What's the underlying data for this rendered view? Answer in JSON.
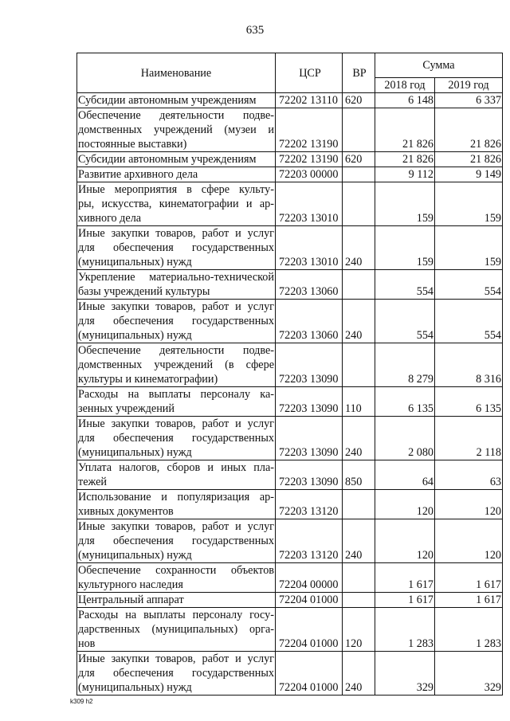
{
  "page_number": "635",
  "footer_code": "k309 h2",
  "header": {
    "name": "Наименование",
    "csr": "ЦСР",
    "vr": "ВР",
    "sum": "Сумма",
    "y2018": "2018 год",
    "y2019": "2019 год"
  },
  "rows": [
    {
      "name": [
        "Субсидии автономным учреждениям"
      ],
      "csr": "72202 13110",
      "vr": "620",
      "y2018": "6 148",
      "y2019": "6 337"
    },
    {
      "name": [
        "Обеспечение деятельности подве-",
        "домственных учреждений (музеи и",
        "постоянные выставки)"
      ],
      "csr": "72202 13190",
      "vr": "",
      "y2018": "21 826",
      "y2019": "21 826"
    },
    {
      "name": [
        "Субсидии автономным учреждениям"
      ],
      "csr": "72202 13190",
      "vr": "620",
      "y2018": "21 826",
      "y2019": "21 826"
    },
    {
      "name": [
        "Развитие архивного дела"
      ],
      "csr": "72203 00000",
      "vr": "",
      "y2018": "9 112",
      "y2019": "9 149"
    },
    {
      "name": [
        "Иные мероприятия в сфере культу-",
        "ры, искусства, кинематографии и ар-",
        "хивного дела"
      ],
      "csr": "72203 13010",
      "vr": "",
      "y2018": "159",
      "y2019": "159"
    },
    {
      "name": [
        "Иные закупки товаров, работ и услуг",
        "для обеспечения государственных",
        "(муниципальных) нужд"
      ],
      "csr": "72203 13010",
      "vr": "240",
      "y2018": "159",
      "y2019": "159"
    },
    {
      "name": [
        "Укрепление материально-технической",
        "базы учреждений культуры"
      ],
      "csr": "72203 13060",
      "vr": "",
      "y2018": "554",
      "y2019": "554"
    },
    {
      "name": [
        "Иные закупки товаров, работ и услуг",
        "для обеспечения государственных",
        "(муниципальных) нужд"
      ],
      "csr": "72203 13060",
      "vr": "240",
      "y2018": "554",
      "y2019": "554"
    },
    {
      "name": [
        "Обеспечение деятельности подве-",
        "домственных учреждений (в сфере",
        "культуры и кинематографии)"
      ],
      "csr": "72203 13090",
      "vr": "",
      "y2018": "8 279",
      "y2019": "8 316"
    },
    {
      "name": [
        "Расходы на выплаты персоналу ка-",
        "зенных учреждений"
      ],
      "csr": "72203 13090",
      "vr": "110",
      "y2018": "6 135",
      "y2019": "6 135"
    },
    {
      "name": [
        "Иные закупки товаров, работ и услуг",
        "для обеспечения государственных",
        "(муниципальных) нужд"
      ],
      "csr": "72203 13090",
      "vr": "240",
      "y2018": "2 080",
      "y2019": "2 118"
    },
    {
      "name": [
        "Уплата налогов, сборов и иных пла-",
        "тежей"
      ],
      "csr": "72203 13090",
      "vr": "850",
      "y2018": "64",
      "y2019": "63"
    },
    {
      "name": [
        "Использование и популяризация ар-",
        "хивных документов"
      ],
      "csr": "72203 13120",
      "vr": "",
      "y2018": "120",
      "y2019": "120"
    },
    {
      "name": [
        "Иные закупки товаров, работ и услуг",
        "для обеспечения государственных",
        "(муниципальных) нужд"
      ],
      "csr": "72203 13120",
      "vr": "240",
      "y2018": "120",
      "y2019": "120"
    },
    {
      "name": [
        "Обеспечение сохранности объектов",
        "культурного наследия"
      ],
      "csr": "72204 00000",
      "vr": "",
      "y2018": "1 617",
      "y2019": "1 617"
    },
    {
      "name": [
        "Центральный аппарат"
      ],
      "csr": "72204 01000",
      "vr": "",
      "y2018": "1 617",
      "y2019": "1 617"
    },
    {
      "name": [
        "Расходы на выплаты персоналу госу-",
        "дарственных (муниципальных) орга-",
        "нов"
      ],
      "csr": "72204 01000",
      "vr": "120",
      "y2018": "1 283",
      "y2019": "1 283"
    },
    {
      "name": [
        "Иные закупки товаров, работ и услуг",
        "для обеспечения государственных",
        "(муниципальных) нужд"
      ],
      "csr": "72204 01000",
      "vr": "240",
      "y2018": "329",
      "y2019": "329"
    }
  ]
}
